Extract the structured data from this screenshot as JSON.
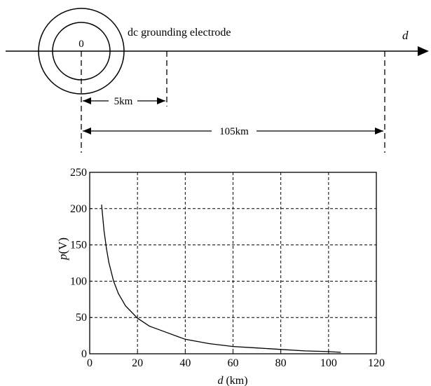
{
  "diagram": {
    "origin_label": "0",
    "electrode_label": "dc grounding electrode",
    "axis_label": "d",
    "distance_short": "5km",
    "distance_long": "105km"
  },
  "chart_data": {
    "type": "line",
    "title": "",
    "xlabel_var": "d",
    "xlabel_unit": " (km)",
    "ylabel_var": "p",
    "ylabel_unit": "(V)",
    "xlim": [
      0,
      120
    ],
    "ylim": [
      0,
      250
    ],
    "xticks": [
      0,
      20,
      40,
      60,
      80,
      100,
      120
    ],
    "yticks": [
      0,
      50,
      100,
      150,
      200,
      250
    ],
    "grid": true,
    "series": [
      {
        "x": [
          5,
          6,
          7,
          8,
          10,
          12,
          15,
          20,
          25,
          30,
          40,
          50,
          60,
          70,
          80,
          90,
          100,
          105
        ],
        "y": [
          205,
          170,
          145,
          126,
          100,
          83,
          66,
          49,
          38,
          32,
          20,
          14,
          10,
          8,
          6,
          4,
          3,
          2
        ]
      }
    ]
  }
}
